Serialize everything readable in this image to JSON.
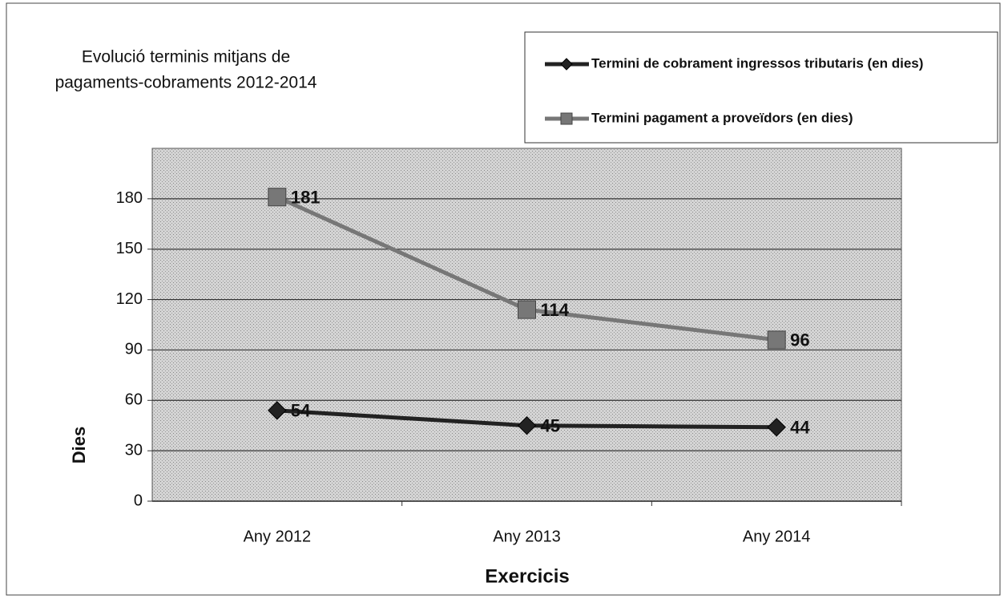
{
  "chart_data": {
    "type": "line",
    "title": [
      "Evolució terminis mitjans de",
      "pagaments-cobraments 2012-2014"
    ],
    "x_label": "Exercicis",
    "y_label": "Dies",
    "categories": [
      "Any 2012",
      "Any 2013",
      "Any 2014"
    ],
    "series": [
      {
        "name": "Termini de cobrament ingressos tributaris (en dies)",
        "color": "#222222",
        "marker": "diamond",
        "values": [
          54,
          45,
          44
        ]
      },
      {
        "name": "Termini pagament a proveïdors (en dies)",
        "color": "#777777",
        "marker": "square",
        "values": [
          181,
          114,
          96
        ]
      }
    ],
    "ylim": [
      0,
      210
    ],
    "yticks": [
      0,
      30,
      60,
      90,
      120,
      150,
      180
    ],
    "grid": true,
    "legend": "top-right"
  }
}
